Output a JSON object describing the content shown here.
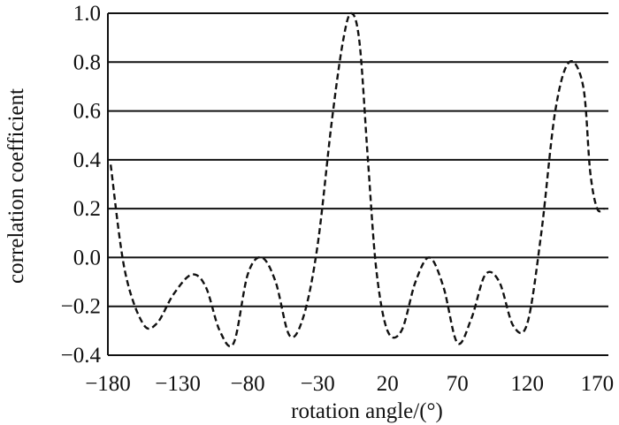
{
  "chart_data": {
    "type": "line",
    "title": "",
    "xlabel": "rotation angle/(°)",
    "ylabel": "correlation coefficient",
    "xlim": [
      -180,
      178
    ],
    "ylim": [
      -0.4,
      1.0
    ],
    "x_ticks": [
      -180,
      -130,
      -80,
      -30,
      20,
      70,
      120,
      170
    ],
    "x_tick_labels": [
      "−180",
      "−130",
      "−80",
      "−30",
      "20",
      "70",
      "120",
      "170"
    ],
    "y_ticks": [
      1.0,
      0.8,
      0.6,
      0.4,
      0.2,
      0.0,
      -0.2,
      -0.4
    ],
    "y_tick_labels": [
      "1.0",
      "0.8",
      "0.6",
      "0.4",
      "0.2",
      "0.0",
      "−0.2",
      "−0.4"
    ],
    "grid": "horizontal",
    "series": [
      {
        "line_style": "dashed",
        "color": "#111111",
        "x": [
          -178,
          -168,
          -155,
          -145,
          -133,
          -120,
          -110,
          -100,
          -90,
          -80,
          -70,
          -60,
          -50,
          -40,
          -30,
          -20,
          -12,
          -6,
          0,
          6,
          12,
          20,
          30,
          40,
          50,
          60,
          70,
          80,
          90,
          100,
          110,
          120,
          130,
          140,
          150,
          160,
          165,
          170,
          175
        ],
        "y": [
          0.38,
          -0.05,
          -0.27,
          -0.27,
          -0.15,
          -0.07,
          -0.12,
          -0.3,
          -0.35,
          -0.07,
          0.0,
          -0.1,
          -0.32,
          -0.24,
          0.05,
          0.55,
          0.88,
          1.0,
          0.88,
          0.4,
          -0.05,
          -0.3,
          -0.3,
          -0.1,
          0.0,
          -0.12,
          -0.35,
          -0.25,
          -0.07,
          -0.1,
          -0.28,
          -0.27,
          0.1,
          0.6,
          0.8,
          0.7,
          0.35,
          0.2,
          0.2
        ]
      }
    ]
  }
}
